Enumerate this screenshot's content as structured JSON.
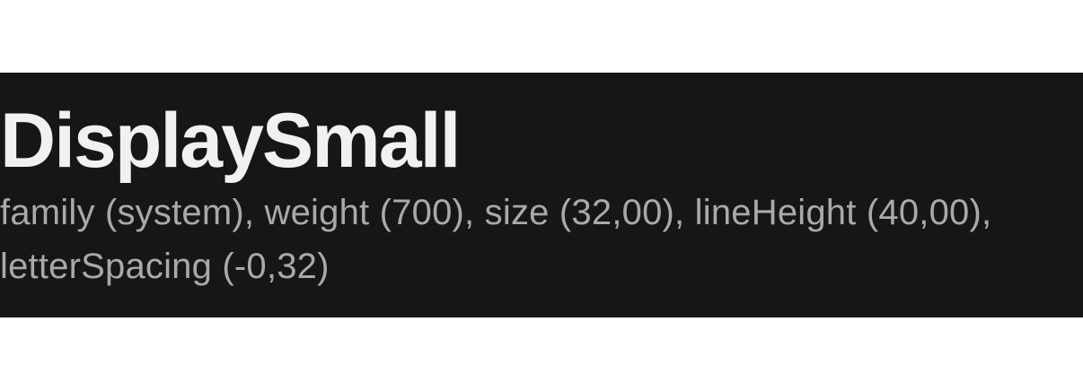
{
  "token": {
    "name": "DisplaySmall",
    "spec": "family (system), weight (700), size (32,00), lineHeight (40,00), letterSpacing (-0,32)"
  },
  "colors": {
    "page_background": "#ffffff",
    "card_background": "#161616",
    "title_text": "#f1f1f1",
    "spec_text": "#a9a9a9"
  }
}
